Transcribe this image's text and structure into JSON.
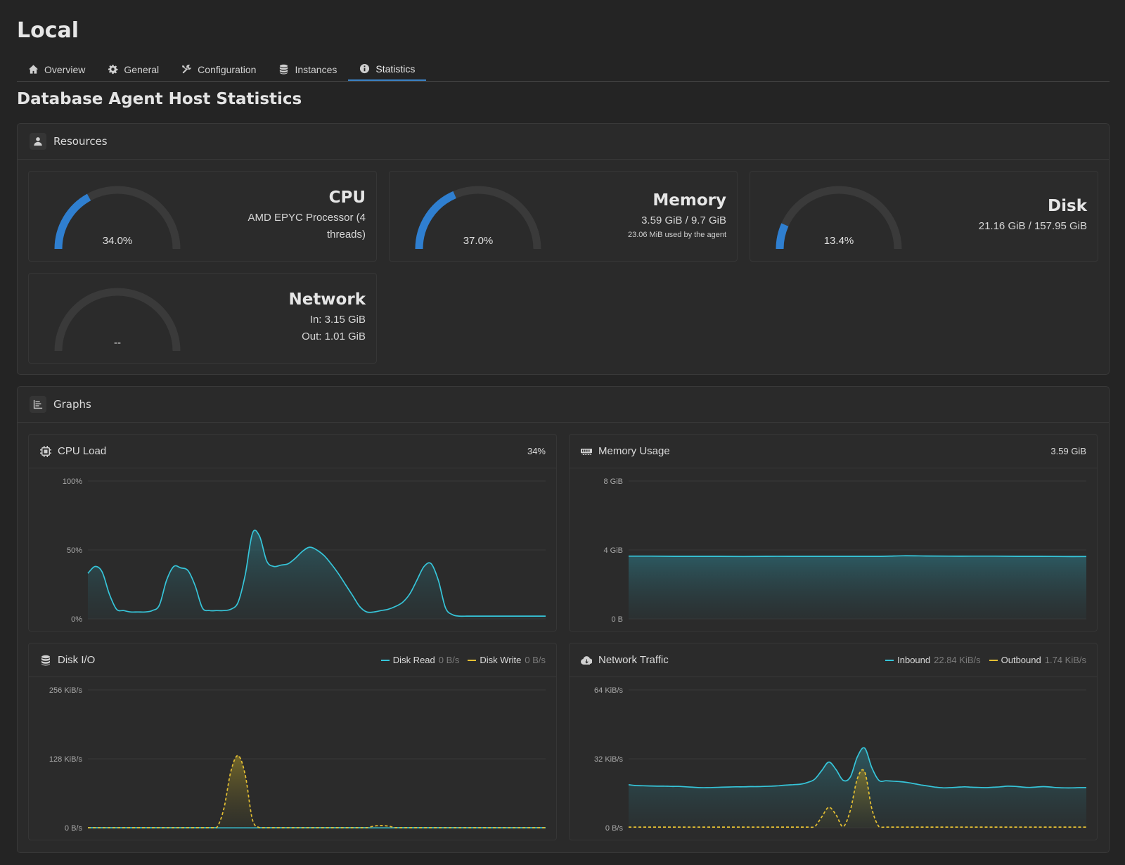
{
  "page": {
    "title": "Local",
    "section_title": "Database Agent Host Statistics"
  },
  "tabs": [
    {
      "label": "Overview",
      "icon": "home-icon"
    },
    {
      "label": "General",
      "icon": "gear-icon"
    },
    {
      "label": "Configuration",
      "icon": "tools-icon"
    },
    {
      "label": "Instances",
      "icon": "database-icon"
    },
    {
      "label": "Statistics",
      "icon": "info-icon",
      "active": true
    }
  ],
  "resources": {
    "title": "Resources",
    "cpu": {
      "title": "CPU",
      "line1": "AMD EPYC Processor (4",
      "line2": "threads)",
      "gauge_text": "34.0%",
      "percent": 34.0
    },
    "memory": {
      "title": "Memory",
      "line1": "3.59 GiB / 9.7 GiB",
      "line2": "23.06 MiB used by the agent",
      "gauge_text": "37.0%",
      "percent": 37.0
    },
    "disk": {
      "title": "Disk",
      "line1": "21.16 GiB / 157.95 GiB",
      "gauge_text": "13.4%",
      "percent": 13.4
    },
    "network": {
      "title": "Network",
      "line1": "In: 3.15 GiB",
      "line2": "Out: 1.01 GiB",
      "gauge_text": "--",
      "percent": 0
    }
  },
  "graphs": {
    "title": "Graphs",
    "cpu_load": {
      "title": "CPU Load",
      "value": "34%"
    },
    "memory_usage": {
      "title": "Memory Usage",
      "value": "3.59 GiB"
    },
    "disk_io": {
      "title": "Disk I/O",
      "legend": [
        {
          "name": "Disk Read",
          "value": "0 B/s",
          "color": "#36c5d9"
        },
        {
          "name": "Disk Write",
          "value": "0 B/s",
          "color": "#e5c033"
        }
      ]
    },
    "network_traffic": {
      "title": "Network Traffic",
      "legend": [
        {
          "name": "Inbound",
          "value": "22.84 KiB/s",
          "color": "#36c5d9"
        },
        {
          "name": "Outbound",
          "value": "1.74 KiB/s",
          "color": "#e5c033"
        }
      ]
    }
  },
  "colors": {
    "accent": "#3b82c4",
    "gauge_fill": "#2f7fd0",
    "gauge_track": "#3a3a3a",
    "series_cyan": "#36c5d9",
    "series_yellow": "#e5c033"
  },
  "chart_data": [
    {
      "type": "area",
      "title": "CPU Load",
      "y_ticks": [
        "100%",
        "50%",
        "0%"
      ],
      "ylim": [
        0,
        100
      ],
      "x": [
        0,
        1,
        2,
        3,
        4,
        5,
        6,
        7,
        8,
        9,
        10,
        11,
        12,
        13,
        14,
        15,
        16,
        17,
        18,
        19,
        20,
        21,
        22,
        23,
        24,
        25,
        26,
        27,
        28,
        29,
        30,
        31,
        32,
        33,
        34,
        35,
        36,
        37,
        38,
        39,
        40,
        41,
        42,
        43,
        44,
        45,
        46,
        47,
        48,
        49,
        50,
        51,
        52,
        53,
        54,
        55,
        56,
        57,
        58,
        59,
        60,
        61,
        62,
        63,
        64
      ],
      "series": [
        {
          "values": [
            33,
            38,
            34,
            18,
            7,
            6,
            5,
            5,
            5,
            6,
            10,
            28,
            38,
            37,
            35,
            24,
            8,
            6,
            6,
            6,
            7,
            12,
            32,
            62,
            60,
            42,
            38,
            39,
            40,
            44,
            49,
            52,
            50,
            46,
            40,
            33,
            25,
            17,
            9,
            5,
            5,
            6,
            7,
            9,
            12,
            18,
            28,
            38,
            40,
            28,
            8,
            3,
            2,
            2,
            2,
            2,
            2,
            2,
            2,
            2,
            2,
            2,
            2,
            2,
            2
          ]
        }
      ]
    },
    {
      "type": "area",
      "title": "Memory Usage",
      "y_ticks": [
        "8 GiB",
        "4 GiB",
        "0 B"
      ],
      "ylim": [
        0,
        8
      ],
      "x": [
        0,
        1,
        2,
        3,
        4,
        5,
        6,
        7,
        8,
        9,
        10,
        11,
        12,
        13,
        14,
        15,
        16,
        17,
        18,
        19,
        20
      ],
      "series": [
        {
          "values": [
            3.64,
            3.64,
            3.63,
            3.63,
            3.63,
            3.62,
            3.63,
            3.63,
            3.63,
            3.63,
            3.63,
            3.63,
            3.66,
            3.65,
            3.64,
            3.64,
            3.64,
            3.63,
            3.63,
            3.62,
            3.62
          ]
        }
      ]
    },
    {
      "type": "area",
      "title": "Disk I/O",
      "y_ticks": [
        "256 KiB/s",
        "128 KiB/s",
        "0 B/s"
      ],
      "ylim": [
        0,
        256
      ],
      "x": [
        0,
        1,
        2,
        3,
        4,
        5,
        6,
        7,
        8,
        9,
        10,
        11,
        12,
        13,
        14,
        15,
        16,
        17,
        18,
        19,
        20,
        21,
        22,
        23,
        24,
        25,
        26,
        27,
        28,
        29,
        30,
        31,
        32,
        33,
        34,
        35,
        36,
        37,
        38,
        39,
        40,
        41,
        42,
        43,
        44,
        45,
        46,
        47,
        48,
        49,
        50,
        51,
        52,
        53,
        54,
        55,
        56,
        57,
        58,
        59,
        60,
        61,
        62,
        63,
        64
      ],
      "series": [
        {
          "name": "Disk Read",
          "values": [
            0,
            0,
            0,
            0,
            0,
            0,
            0,
            0,
            0,
            0,
            0,
            0,
            0,
            0,
            0,
            0,
            0,
            0,
            0,
            0,
            0,
            0,
            0,
            0,
            0,
            0,
            0,
            0,
            0,
            0,
            0,
            0,
            0,
            0,
            0,
            0,
            0,
            0,
            0,
            0,
            0,
            0,
            0,
            0,
            0,
            0,
            0,
            0,
            0,
            0,
            0,
            0,
            0,
            0,
            0,
            0,
            0,
            0,
            0,
            0,
            0,
            0,
            0,
            0,
            0
          ]
        },
        {
          "name": "Disk Write",
          "values": [
            0,
            0,
            0,
            0,
            0,
            0,
            0,
            0,
            0,
            0,
            0,
            0,
            0,
            0,
            0,
            0,
            0,
            0,
            0,
            35,
            105,
            134,
            98,
            15,
            0,
            0,
            0,
            0,
            0,
            0,
            0,
            0,
            0,
            0,
            0,
            0,
            0,
            0,
            0,
            0,
            3,
            4,
            3,
            0,
            0,
            0,
            0,
            0,
            0,
            0,
            0,
            0,
            0,
            0,
            0,
            0,
            0,
            0,
            0,
            0,
            0,
            0,
            0,
            0,
            0
          ]
        }
      ]
    },
    {
      "type": "area",
      "title": "Network Traffic",
      "y_ticks": [
        "64 KiB/s",
        "32 KiB/s",
        "0 B/s"
      ],
      "ylim": [
        0,
        64
      ],
      "x": [
        0,
        1,
        2,
        3,
        4,
        5,
        6,
        7,
        8,
        9,
        10,
        11,
        12,
        13,
        14,
        15,
        16,
        17,
        18,
        19,
        20,
        21,
        22,
        23,
        24,
        25,
        26,
        27,
        28,
        29,
        30,
        31,
        32,
        33,
        34,
        35,
        36,
        37,
        38,
        39,
        40,
        41,
        42,
        43,
        44,
        45,
        46,
        47,
        48,
        49,
        50,
        51,
        52,
        53,
        54,
        55,
        56,
        57,
        58,
        59,
        60,
        61,
        62,
        63,
        64
      ],
      "series": [
        {
          "name": "Inbound",
          "values": [
            20,
            19.6,
            19.5,
            19.4,
            19.3,
            19.3,
            19.2,
            19.2,
            19.0,
            18.8,
            18.6,
            18.6,
            18.7,
            18.8,
            18.9,
            19.0,
            19.0,
            19.1,
            19.1,
            19.2,
            19.3,
            19.5,
            19.8,
            20.0,
            20.2,
            21.0,
            22.5,
            26.5,
            30.5,
            27.0,
            22.0,
            23.5,
            33.0,
            37.0,
            28.0,
            22.0,
            21.8,
            21.6,
            21.4,
            21.0,
            20.4,
            19.8,
            19.3,
            18.8,
            18.5,
            18.6,
            18.8,
            19.0,
            18.8,
            18.7,
            18.6,
            18.8,
            19.0,
            19.3,
            19.2,
            18.9,
            18.7,
            18.9,
            19.1,
            18.9,
            18.6,
            18.5,
            18.5,
            18.6,
            18.6
          ]
        },
        {
          "name": "Outbound",
          "values": [
            0.3,
            0.3,
            0.3,
            0.3,
            0.3,
            0.3,
            0.3,
            0.3,
            0.3,
            0.3,
            0.3,
            0.3,
            0.3,
            0.3,
            0.3,
            0.3,
            0.3,
            0.3,
            0.3,
            0.3,
            0.3,
            0.3,
            0.3,
            0.3,
            0.3,
            0.3,
            0.5,
            5.0,
            9.5,
            6.0,
            0.5,
            8.0,
            23.0,
            26.0,
            9.0,
            0.5,
            0.3,
            0.3,
            0.3,
            0.3,
            0.3,
            0.3,
            0.3,
            0.3,
            0.3,
            0.3,
            0.3,
            0.3,
            0.3,
            0.3,
            0.3,
            0.3,
            0.3,
            0.3,
            0.3,
            0.3,
            0.3,
            0.3,
            0.3,
            0.3,
            0.3,
            0.3,
            0.3,
            0.3,
            0.3
          ]
        }
      ]
    }
  ]
}
